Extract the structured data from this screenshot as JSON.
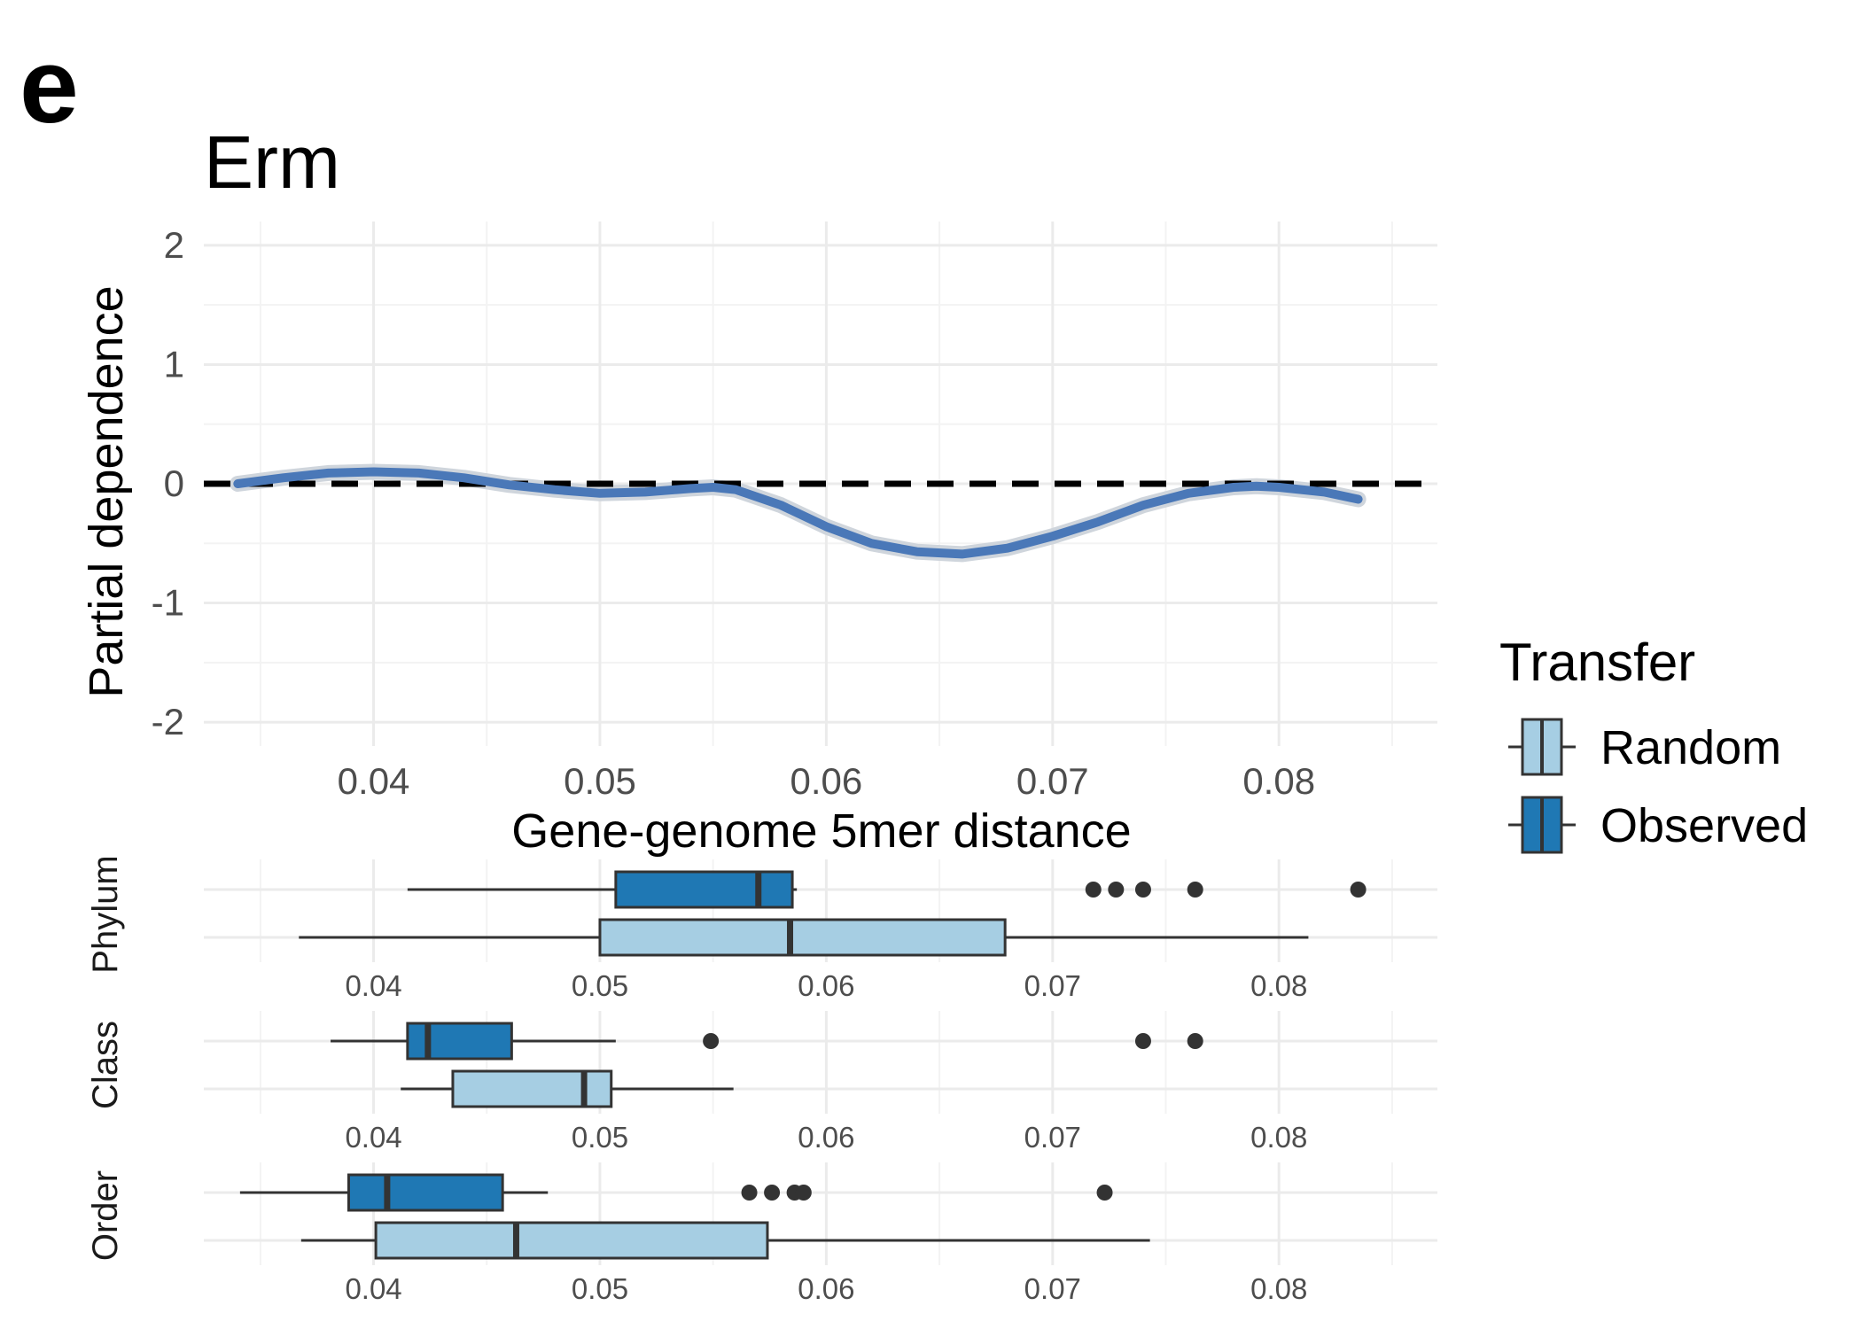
{
  "panel_letter": "e",
  "chart_data": [
    {
      "type": "line",
      "title": "Erm",
      "xlabel": "Gene-genome 5mer distance",
      "ylabel": "Partial dependence",
      "xlim": [
        0.0325,
        0.087
      ],
      "ylim": [
        -2.2,
        2.2
      ],
      "x_ticks": [
        0.04,
        0.05,
        0.06,
        0.07,
        0.08
      ],
      "y_ticks": [
        -2,
        -1,
        0,
        1,
        2
      ],
      "reference_line": {
        "y": 0,
        "style": "dashed",
        "color": "#000000"
      },
      "series": [
        {
          "color": "#4a78b8",
          "x": [
            0.034,
            0.036,
            0.038,
            0.04,
            0.042,
            0.044,
            0.046,
            0.048,
            0.05,
            0.052,
            0.054,
            0.055,
            0.056,
            0.058,
            0.06,
            0.062,
            0.064,
            0.066,
            0.068,
            0.07,
            0.072,
            0.074,
            0.076,
            0.078,
            0.079,
            0.08,
            0.082,
            0.0835
          ],
          "y": [
            0.0,
            0.05,
            0.09,
            0.1,
            0.09,
            0.05,
            -0.01,
            -0.05,
            -0.08,
            -0.07,
            -0.04,
            -0.03,
            -0.05,
            -0.18,
            -0.36,
            -0.5,
            -0.57,
            -0.59,
            -0.54,
            -0.44,
            -0.32,
            -0.18,
            -0.08,
            -0.03,
            -0.02,
            -0.03,
            -0.07,
            -0.13
          ]
        }
      ]
    },
    {
      "type": "boxplot",
      "legend": {
        "title": "Transfer",
        "placement": "right",
        "entries": [
          {
            "name": "Random",
            "color": "#a6cee3"
          },
          {
            "name": "Observed",
            "color": "#1f78b4"
          }
        ]
      },
      "xlim": [
        0.0325,
        0.087
      ],
      "x_ticks": [
        0.04,
        0.05,
        0.06,
        0.07,
        0.08
      ],
      "facets": [
        {
          "label": "Phylum",
          "groups": [
            {
              "name": "Observed",
              "whisker_low": 0.0415,
              "q1": 0.0507,
              "median": 0.057,
              "q3": 0.0585,
              "whisker_high": 0.0587,
              "outliers": [
                0.0718,
                0.0728,
                0.074,
                0.0763,
                0.0835
              ]
            },
            {
              "name": "Random",
              "whisker_low": 0.0367,
              "q1": 0.05,
              "median": 0.0584,
              "q3": 0.0679,
              "whisker_high": 0.0813,
              "outliers": []
            }
          ]
        },
        {
          "label": "Class",
          "groups": [
            {
              "name": "Observed",
              "whisker_low": 0.0381,
              "q1": 0.0415,
              "median": 0.0424,
              "q3": 0.0461,
              "whisker_high": 0.0507,
              "outliers": [
                0.0549,
                0.074,
                0.0763
              ]
            },
            {
              "name": "Random",
              "whisker_low": 0.0412,
              "q1": 0.0435,
              "median": 0.0493,
              "q3": 0.0505,
              "whisker_high": 0.0559,
              "outliers": []
            }
          ]
        },
        {
          "label": "Order",
          "groups": [
            {
              "name": "Observed",
              "whisker_low": 0.0341,
              "q1": 0.0389,
              "median": 0.0406,
              "q3": 0.0457,
              "whisker_high": 0.0477,
              "outliers": [
                0.0566,
                0.0576,
                0.0586,
                0.059,
                0.0723
              ]
            },
            {
              "name": "Random",
              "whisker_low": 0.0368,
              "q1": 0.0401,
              "median": 0.0463,
              "q3": 0.0574,
              "whisker_high": 0.0743,
              "outliers": []
            }
          ]
        }
      ]
    }
  ]
}
